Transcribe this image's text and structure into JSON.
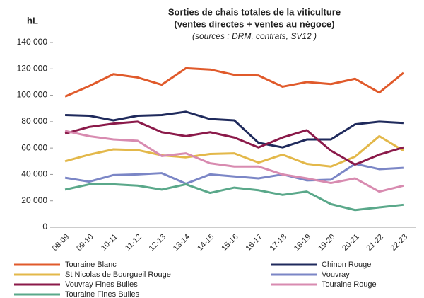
{
  "chart_data": {
    "type": "line",
    "title": "Sorties de chais totales de la viticulture",
    "title_line2": "(ventes directes + ventes au négoce)",
    "subtitle": "(sources : DRM, contrats, SV12 )",
    "y_label": "hL",
    "categories": [
      "08-09",
      "09-10",
      "10-11",
      "11-12",
      "12-13",
      "13-14",
      "14-15",
      "15-16",
      "16-17",
      "17-18",
      "18-19",
      "19-20",
      "20-21",
      "21-22",
      "22-23"
    ],
    "ylim": [
      0,
      140000
    ],
    "yticks": [
      0,
      {
        "value": 20000,
        "label": "20 000"
      },
      {
        "value": 40000,
        "label": "40 000"
      },
      {
        "value": 60000,
        "label": "60 000"
      },
      {
        "value": 80000,
        "label": "80 000"
      },
      {
        "value": 100000,
        "label": "100 000"
      },
      {
        "value": 120000,
        "label": "120 000"
      },
      {
        "value": 140000,
        "label": "140 000"
      }
    ],
    "series": [
      {
        "name": "Touraine Blanc",
        "color": "#e05a2b",
        "values": [
          99000,
          107000,
          116000,
          113500,
          108000,
          120500,
          119500,
          115500,
          115000,
          106500,
          110000,
          108500,
          112500,
          102000,
          117000
        ]
      },
      {
        "name": "Chinon Rouge",
        "color": "#1f2a5c",
        "values": [
          85000,
          84500,
          81000,
          84500,
          85000,
          87500,
          82000,
          81000,
          64000,
          60500,
          66500,
          66500,
          78000,
          80000,
          79000
        ]
      },
      {
        "name": "St Nicolas de Bourgueil Rouge",
        "color": "#e3b84a",
        "values": [
          50000,
          55000,
          59000,
          58500,
          54500,
          53000,
          55500,
          56000,
          49000,
          55000,
          48000,
          46000,
          53500,
          69000,
          58000
        ]
      },
      {
        "name": "Vouvray",
        "color": "#7b86c6",
        "values": [
          37500,
          34500,
          39500,
          40000,
          41000,
          33000,
          40000,
          38500,
          37000,
          40000,
          35500,
          36000,
          48000,
          44000,
          45000
        ]
      },
      {
        "name": "Vouvray Fines Bulles",
        "color": "#8b1a4a",
        "values": [
          71000,
          76000,
          78500,
          80000,
          72000,
          69000,
          72000,
          68000,
          60500,
          68000,
          73500,
          58000,
          47500,
          55000,
          60500
        ]
      },
      {
        "name": "Touraine Rouge",
        "color": "#d88bb0",
        "values": [
          73000,
          69000,
          66500,
          65500,
          54000,
          56000,
          48500,
          46000,
          46000,
          40000,
          37000,
          33500,
          37000,
          27000,
          31500
        ]
      },
      {
        "name": "Touraine Fines Bulles",
        "color": "#5aa88a",
        "values": [
          28500,
          32500,
          32500,
          31500,
          28500,
          32500,
          26000,
          30000,
          28000,
          24500,
          27000,
          17500,
          13000,
          15000,
          17000
        ]
      }
    ]
  }
}
